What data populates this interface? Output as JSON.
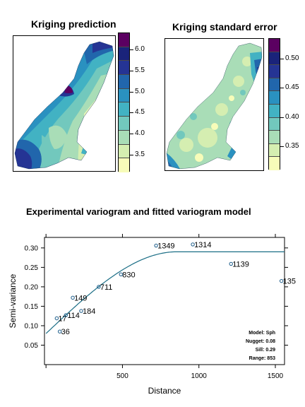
{
  "chart_data": [
    {
      "type": "heatmap",
      "title": "Kriging prediction",
      "legend_ticks": [
        "6.0",
        "5.5",
        "5.0",
        "4.5",
        "4.0",
        "3.5"
      ],
      "legend_tick_values": [
        6.0,
        5.5,
        5.0,
        4.5,
        4.0,
        3.5
      ],
      "legend_range": [
        3.1,
        6.4
      ],
      "palette": [
        "#F7FCB9",
        "#D5EEB1",
        "#A9DDB7",
        "#72C8BD",
        "#42B2C3",
        "#2A91C0",
        "#2166AC",
        "#253494",
        "#1A237A",
        "#5B0061"
      ]
    },
    {
      "type": "heatmap",
      "title": "Kriging standard error",
      "legend_ticks": [
        "0.50",
        "0.45",
        "0.40",
        "0.35"
      ],
      "legend_tick_values": [
        0.5,
        0.45,
        0.4,
        0.35
      ],
      "legend_range": [
        0.31,
        0.535
      ],
      "palette": [
        "#F7FCB9",
        "#D5EEB1",
        "#A9DDB7",
        "#72C8BD",
        "#42B2C3",
        "#2A91C0",
        "#2166AC",
        "#253494",
        "#1A237A",
        "#5B0061"
      ]
    },
    {
      "type": "scatter",
      "title": "Experimental variogram and fitted variogram model",
      "xlabel": "Distance",
      "ylabel": "Semi-variance",
      "xlim": [
        -10,
        1560
      ],
      "ylim": [
        0.0,
        0.327
      ],
      "xticks": [
        500,
        1000,
        1500
      ],
      "yticks": [
        0.05,
        0.1,
        0.15,
        0.2,
        0.25,
        0.3
      ],
      "points": [
        {
          "x": 70,
          "y": 0.119,
          "label": "17"
        },
        {
          "x": 90,
          "y": 0.085,
          "label": "36"
        },
        {
          "x": 130,
          "y": 0.127,
          "label": "114"
        },
        {
          "x": 175,
          "y": 0.172,
          "label": "149"
        },
        {
          "x": 230,
          "y": 0.138,
          "label": "184"
        },
        {
          "x": 345,
          "y": 0.2,
          "label": "711"
        },
        {
          "x": 490,
          "y": 0.232,
          "label": "830"
        },
        {
          "x": 720,
          "y": 0.306,
          "label": "1349"
        },
        {
          "x": 960,
          "y": 0.309,
          "label": "1314"
        },
        {
          "x": 1210,
          "y": 0.259,
          "label": "1139"
        },
        {
          "x": 1540,
          "y": 0.215,
          "label": "135"
        }
      ],
      "model": {
        "type": "spherical",
        "nugget": 0.08,
        "sill": 0.29,
        "range": 853
      },
      "model_text": [
        "Model: Sph",
        "Nugget: 0.08",
        "Sill: 0.29",
        "Range: 853"
      ],
      "line_color": "#1B6E86",
      "point_color": "#1B5C8A"
    }
  ]
}
